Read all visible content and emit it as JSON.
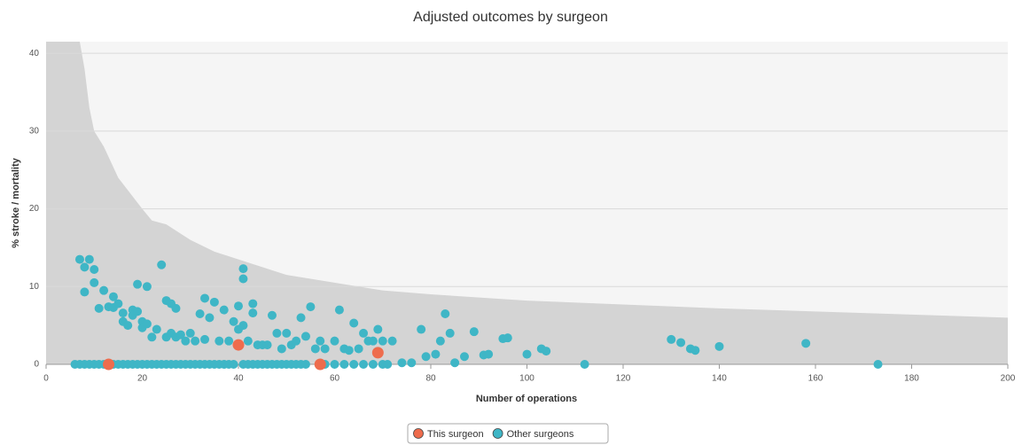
{
  "chart_data": {
    "type": "scatter",
    "title": "Adjusted outcomes by surgeon",
    "x_label": "Number of operations",
    "y_label": "% stroke / mortality",
    "xlim": [
      0,
      200
    ],
    "ylim": [
      0,
      41.5
    ],
    "xticks": [
      0,
      20,
      40,
      60,
      80,
      100,
      120,
      140,
      160,
      180,
      200
    ],
    "yticks": [
      0,
      10,
      20,
      30,
      40
    ],
    "grid": true,
    "legend": "bottom",
    "area": {
      "color": "#d4d4d4",
      "x": [
        0,
        7,
        8,
        9,
        10,
        12,
        15,
        20,
        22,
        25,
        30,
        35,
        40,
        45,
        50,
        60,
        70,
        80,
        100,
        120,
        140,
        160,
        180,
        200
      ],
      "values": [
        41.5,
        41.5,
        38,
        33,
        30,
        28,
        24,
        20,
        18.5,
        18,
        16,
        14.5,
        13.5,
        12.5,
        11.5,
        10.5,
        9.5,
        9,
        8.2,
        7.7,
        7.2,
        6.8,
        6.4,
        6
      ]
    },
    "series": [
      {
        "name": "Other surgeons",
        "color": "#3fb6c6",
        "x": [
          7,
          8,
          9,
          10,
          8,
          10,
          11,
          12,
          13,
          14,
          14,
          15,
          16,
          16,
          17,
          18,
          18,
          19,
          19,
          20,
          20,
          21,
          21,
          22,
          23,
          24,
          25,
          25,
          26,
          26,
          27,
          27,
          28,
          29,
          30,
          31,
          32,
          33,
          33,
          34,
          35,
          36,
          37,
          38,
          39,
          40,
          40,
          41,
          41,
          41,
          42,
          43,
          43,
          44,
          45,
          46,
          47,
          48,
          49,
          50,
          51,
          52,
          53,
          54,
          55,
          56,
          57,
          58,
          60,
          61,
          62,
          63,
          64,
          65,
          66,
          67,
          68,
          69,
          70,
          72,
          74,
          76,
          78,
          79,
          81,
          82,
          83,
          84,
          85,
          87,
          89,
          91,
          92,
          95,
          96,
          100,
          103,
          104,
          112,
          130,
          132,
          134,
          135,
          140,
          158,
          173,
          6,
          7,
          8,
          9,
          10,
          11,
          12,
          14,
          15,
          16,
          17,
          18,
          19,
          20,
          21,
          22,
          23,
          24,
          25,
          26,
          27,
          28,
          29,
          30,
          31,
          32,
          33,
          34,
          35,
          36,
          37,
          38,
          39,
          41,
          42,
          43,
          44,
          45,
          46,
          47,
          48,
          49,
          50,
          51,
          52,
          53,
          54,
          58,
          60,
          62,
          64,
          66,
          68,
          70,
          71
        ],
        "values": [
          13.5,
          12.5,
          13.5,
          12.2,
          9.3,
          10.5,
          7.2,
          9.5,
          7.4,
          8.7,
          7.3,
          7.8,
          5.5,
          6.6,
          5,
          7,
          6.3,
          10.3,
          6.8,
          5.5,
          4.7,
          10,
          5.2,
          3.5,
          4.5,
          12.8,
          8.2,
          3.5,
          7.8,
          4,
          7.2,
          3.5,
          3.8,
          3,
          4,
          3,
          6.5,
          8.5,
          3.2,
          6,
          8,
          3,
          7,
          3,
          5.5,
          7.5,
          4.5,
          12.3,
          11,
          5,
          3,
          7.8,
          6.6,
          2.5,
          2.5,
          2.5,
          6.3,
          4,
          2,
          4,
          2.5,
          3,
          6,
          3.6,
          7.4,
          2,
          3,
          2,
          3,
          7,
          2,
          1.8,
          5.3,
          2,
          4,
          3,
          3,
          4.5,
          3,
          3,
          0.2,
          0.2,
          4.5,
          1,
          1.3,
          3,
          6.5,
          4,
          0.2,
          1,
          4.2,
          1.2,
          1.3,
          3.3,
          3.4,
          1.3,
          2,
          1.7,
          0,
          3.2,
          2.8,
          2,
          1.8,
          2.3,
          2.7,
          0,
          0,
          0,
          0,
          0,
          0,
          0,
          0,
          0,
          0,
          0,
          0,
          0,
          0,
          0,
          0,
          0,
          0,
          0,
          0,
          0,
          0,
          0,
          0,
          0,
          0,
          0,
          0,
          0,
          0,
          0,
          0,
          0,
          0,
          0,
          0,
          0,
          0,
          0,
          0,
          0,
          0,
          0,
          0,
          0,
          0,
          0,
          0,
          0,
          0,
          0,
          0,
          0,
          0,
          0,
          0
        ]
      },
      {
        "name": "This surgeon",
        "color": "#ee6c4d",
        "x": [
          13,
          40,
          57,
          69
        ],
        "values": [
          0,
          2.5,
          0,
          1.5
        ]
      }
    ]
  }
}
